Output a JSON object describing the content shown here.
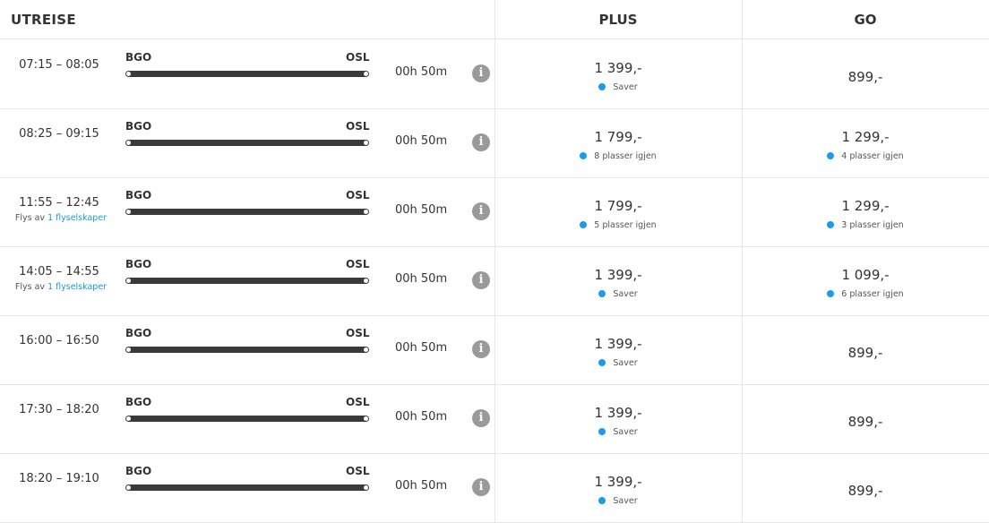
{
  "header": {
    "outbound": "UTREISE",
    "plus": "PLUS",
    "go": "GO"
  },
  "info_glyph": "i",
  "colors": {
    "accent": "#1a9bf0",
    "bar": "#3a3a3a",
    "divider": "#e6e6e6"
  },
  "icons": {
    "info": "info-circle-icon",
    "availability": "dot-icon"
  },
  "flights": [
    {
      "time": "07:15 – 08:05",
      "from": "BGO",
      "to": "OSL",
      "duration": "00h 50m",
      "plus": {
        "price": "1 399,-",
        "note": "Saver"
      },
      "go": {
        "price": "899,-",
        "note": ""
      }
    },
    {
      "time": "08:25 – 09:15",
      "from": "BGO",
      "to": "OSL",
      "duration": "00h 50m",
      "plus": {
        "price": "1 799,-",
        "note": "8 plasser igjen"
      },
      "go": {
        "price": "1 299,-",
        "note": "4 plasser igjen"
      }
    },
    {
      "time": "11:55 – 12:45",
      "operator_prefix": "Flys av",
      "operator_link": "1 flyselskaper",
      "from": "BGO",
      "to": "OSL",
      "duration": "00h 50m",
      "plus": {
        "price": "1 799,-",
        "note": "5 plasser igjen"
      },
      "go": {
        "price": "1 299,-",
        "note": "3 plasser igjen"
      }
    },
    {
      "time": "14:05 – 14:55",
      "operator_prefix": "Flys av",
      "operator_link": "1 flyselskaper",
      "from": "BGO",
      "to": "OSL",
      "duration": "00h 50m",
      "plus": {
        "price": "1 399,-",
        "note": "Saver"
      },
      "go": {
        "price": "1 099,-",
        "note": "6 plasser igjen"
      }
    },
    {
      "time": "16:00 – 16:50",
      "from": "BGO",
      "to": "OSL",
      "duration": "00h 50m",
      "plus": {
        "price": "1 399,-",
        "note": "Saver"
      },
      "go": {
        "price": "899,-",
        "note": ""
      }
    },
    {
      "time": "17:30 – 18:20",
      "from": "BGO",
      "to": "OSL",
      "duration": "00h 50m",
      "plus": {
        "price": "1 399,-",
        "note": "Saver"
      },
      "go": {
        "price": "899,-",
        "note": ""
      }
    },
    {
      "time": "18:20 – 19:10",
      "from": "BGO",
      "to": "OSL",
      "duration": "00h 50m",
      "plus": {
        "price": "1 399,-",
        "note": "Saver"
      },
      "go": {
        "price": "899,-",
        "note": ""
      }
    }
  ]
}
